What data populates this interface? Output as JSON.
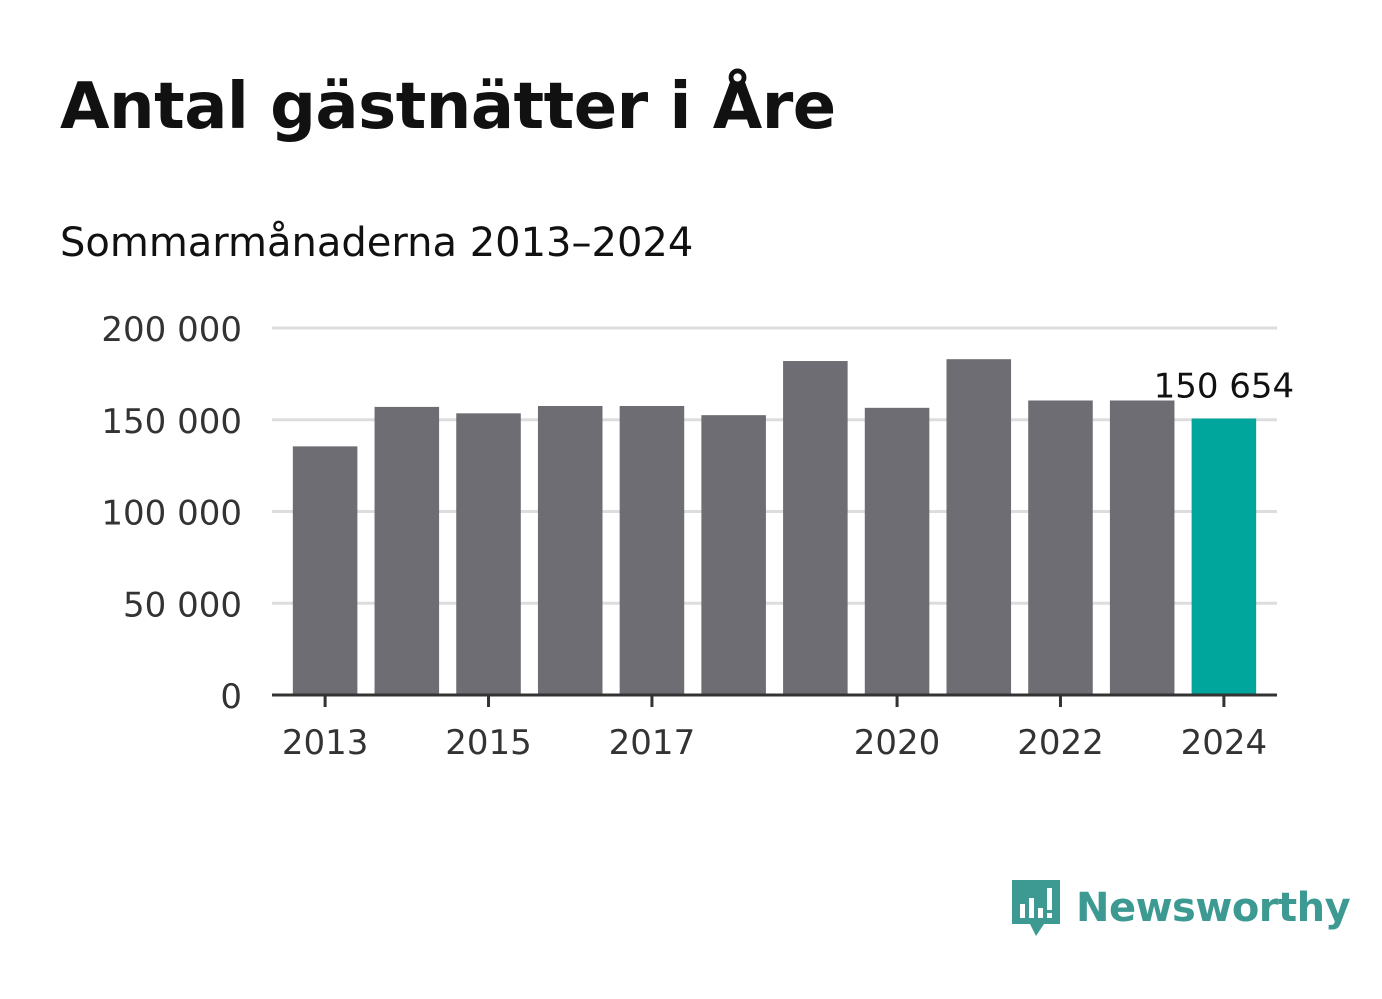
{
  "header": {
    "title": "Antal gästnätter i Åre",
    "subtitle": "Sommarmånaderna 2013–2024"
  },
  "chart_data": {
    "type": "bar",
    "categories": [
      "2013",
      "2014",
      "2015",
      "2016",
      "2017",
      "2018",
      "2019",
      "2020",
      "2021",
      "2022",
      "2023",
      "2024"
    ],
    "values": [
      135500,
      157000,
      153500,
      157500,
      157500,
      152500,
      182000,
      156500,
      183000,
      160500,
      160500,
      150654
    ],
    "x_tick_labels": [
      "2013",
      "2015",
      "2017",
      "2020",
      "2022",
      "2024"
    ],
    "y_ticks": [
      0,
      50000,
      100000,
      150000,
      200000
    ],
    "y_tick_labels": [
      "0",
      "50 000",
      "100 000",
      "150 000",
      "200 000"
    ],
    "ylim": [
      0,
      200000
    ],
    "grid": true,
    "highlight_index": 11,
    "annotation": {
      "index": 11,
      "text": "150 654"
    },
    "colors": {
      "bar": "#6e6d73",
      "highlight": "#00a69c",
      "grid": "#dddddd",
      "axis": "#333333"
    }
  },
  "logo": {
    "text": "Newsworthy",
    "icon": "newsworthy-logo-icon",
    "color": "#3d9a92"
  }
}
